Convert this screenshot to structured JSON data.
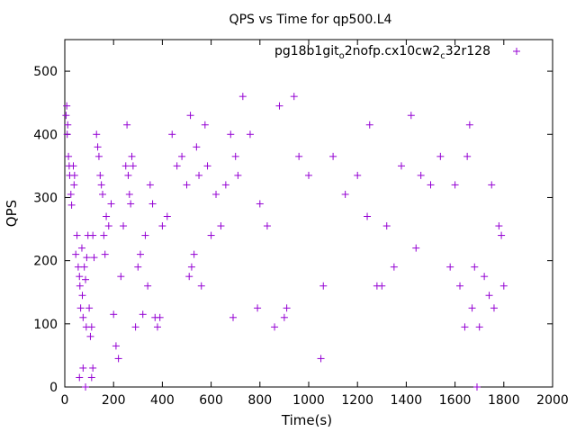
{
  "chart_data": {
    "type": "scatter",
    "title": "QPS vs Time for qp500.L4",
    "xlabel": "Time(s)",
    "ylabel": "QPS",
    "xlim": [
      0,
      2000
    ],
    "ylim": [
      0,
      550
    ],
    "xticks": [
      "0",
      "200",
      "400",
      "600",
      "800",
      "1000",
      "1200",
      "1400",
      "1600",
      "1800",
      "2000"
    ],
    "yticks": [
      "0",
      "100",
      "200",
      "300",
      "400",
      "500"
    ],
    "grid": false,
    "legend_position": "top-right",
    "marker": "plus",
    "color": "#9400d3",
    "series": [
      {
        "name": "pg18b1git_o2nofp.cx10cw2_c32r128",
        "points": [
          [
            5,
            430
          ],
          [
            8,
            445
          ],
          [
            10,
            400
          ],
          [
            12,
            415
          ],
          [
            15,
            365
          ],
          [
            18,
            350
          ],
          [
            20,
            335
          ],
          [
            25,
            305
          ],
          [
            28,
            288
          ],
          [
            35,
            350
          ],
          [
            38,
            320
          ],
          [
            40,
            335
          ],
          [
            45,
            210
          ],
          [
            50,
            240
          ],
          [
            55,
            190
          ],
          [
            60,
            175
          ],
          [
            62,
            160
          ],
          [
            65,
            125
          ],
          [
            70,
            220
          ],
          [
            72,
            145
          ],
          [
            75,
            110
          ],
          [
            80,
            190
          ],
          [
            85,
            170
          ],
          [
            88,
            95
          ],
          [
            90,
            205
          ],
          [
            95,
            240
          ],
          [
            100,
            125
          ],
          [
            105,
            80
          ],
          [
            110,
            95
          ],
          [
            115,
            240
          ],
          [
            120,
            205
          ],
          [
            60,
            15
          ],
          [
            75,
            30
          ],
          [
            85,
            0
          ],
          [
            110,
            15
          ],
          [
            115,
            30
          ],
          [
            130,
            400
          ],
          [
            135,
            380
          ],
          [
            140,
            365
          ],
          [
            145,
            335
          ],
          [
            150,
            320
          ],
          [
            155,
            305
          ],
          [
            160,
            240
          ],
          [
            165,
            210
          ],
          [
            170,
            270
          ],
          [
            180,
            255
          ],
          [
            190,
            290
          ],
          [
            200,
            115
          ],
          [
            210,
            65
          ],
          [
            220,
            45
          ],
          [
            230,
            175
          ],
          [
            240,
            255
          ],
          [
            250,
            350
          ],
          [
            255,
            415
          ],
          [
            260,
            335
          ],
          [
            265,
            305
          ],
          [
            270,
            290
          ],
          [
            275,
            365
          ],
          [
            280,
            350
          ],
          [
            290,
            95
          ],
          [
            300,
            190
          ],
          [
            310,
            210
          ],
          [
            320,
            115
          ],
          [
            330,
            240
          ],
          [
            340,
            160
          ],
          [
            350,
            320
          ],
          [
            360,
            290
          ],
          [
            370,
            110
          ],
          [
            380,
            95
          ],
          [
            390,
            110
          ],
          [
            400,
            255
          ],
          [
            420,
            270
          ],
          [
            440,
            400
          ],
          [
            460,
            350
          ],
          [
            480,
            365
          ],
          [
            500,
            320
          ],
          [
            510,
            175
          ],
          [
            515,
            430
          ],
          [
            520,
            190
          ],
          [
            530,
            210
          ],
          [
            540,
            380
          ],
          [
            550,
            335
          ],
          [
            560,
            160
          ],
          [
            575,
            415
          ],
          [
            585,
            350
          ],
          [
            600,
            240
          ],
          [
            620,
            305
          ],
          [
            640,
            255
          ],
          [
            660,
            320
          ],
          [
            680,
            400
          ],
          [
            690,
            110
          ],
          [
            700,
            365
          ],
          [
            710,
            335
          ],
          [
            730,
            460
          ],
          [
            760,
            400
          ],
          [
            790,
            125
          ],
          [
            800,
            290
          ],
          [
            830,
            255
          ],
          [
            860,
            95
          ],
          [
            880,
            445
          ],
          [
            900,
            110
          ],
          [
            910,
            125
          ],
          [
            940,
            460
          ],
          [
            960,
            365
          ],
          [
            1000,
            335
          ],
          [
            1050,
            45
          ],
          [
            1060,
            160
          ],
          [
            1100,
            365
          ],
          [
            1150,
            305
          ],
          [
            1200,
            335
          ],
          [
            1240,
            270
          ],
          [
            1250,
            415
          ],
          [
            1280,
            160
          ],
          [
            1300,
            160
          ],
          [
            1320,
            255
          ],
          [
            1350,
            190
          ],
          [
            1380,
            350
          ],
          [
            1420,
            430
          ],
          [
            1440,
            220
          ],
          [
            1460,
            335
          ],
          [
            1500,
            320
          ],
          [
            1540,
            365
          ],
          [
            1580,
            190
          ],
          [
            1600,
            320
          ],
          [
            1620,
            160
          ],
          [
            1640,
            95
          ],
          [
            1650,
            365
          ],
          [
            1660,
            415
          ],
          [
            1670,
            125
          ],
          [
            1680,
            190
          ],
          [
            1690,
            0
          ],
          [
            1700,
            95
          ],
          [
            1720,
            175
          ],
          [
            1740,
            145
          ],
          [
            1750,
            320
          ],
          [
            1760,
            125
          ],
          [
            1780,
            255
          ],
          [
            1790,
            240
          ],
          [
            1800,
            160
          ]
        ]
      }
    ]
  }
}
